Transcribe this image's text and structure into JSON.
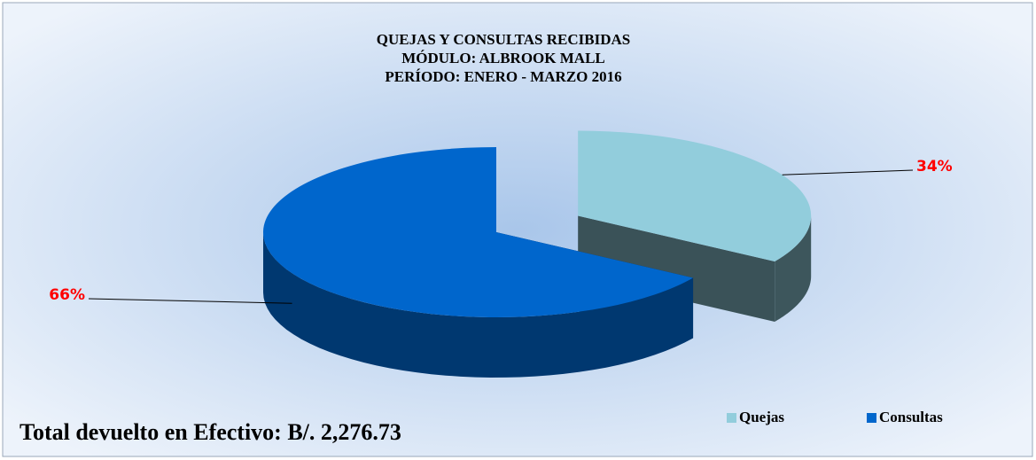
{
  "chart_data": {
    "type": "pie",
    "title": [
      "QUEJAS Y CONSULTAS RECIBIDAS",
      "MÓDULO: ALBROOK MALL",
      "PERÍODO: ENERO - MARZO 2016"
    ],
    "categories": [
      "Quejas",
      "Consultas"
    ],
    "values": [
      34,
      66
    ],
    "value_labels": [
      "34%",
      "66%"
    ],
    "colors": [
      "#92cddc",
      "#0066cc"
    ],
    "exploded": [
      true,
      false
    ],
    "legend": "bottom-right",
    "annotation": "Total devuelto en Efectivo: B/. 2,276.73"
  }
}
